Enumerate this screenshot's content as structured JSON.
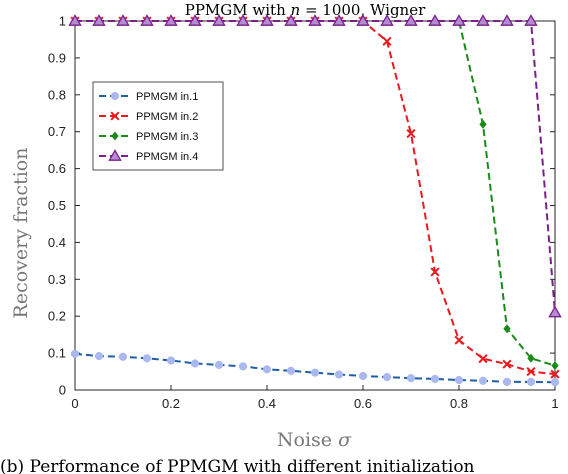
{
  "chart_data": {
    "type": "line",
    "title": "PPMGM with n = 1000, Wigner",
    "title_parts": {
      "prefix": "PPMGM with ",
      "var": "n",
      "suffix": " = 1000, Wigner"
    },
    "xlabel": "Noise σ",
    "xlabel_parts": {
      "text": "Noise ",
      "var": "σ"
    },
    "ylabel": "Recovery fraction",
    "xlim": [
      0,
      1
    ],
    "ylim": [
      0,
      1
    ],
    "xticks": [
      0,
      0.2,
      0.4,
      0.6,
      0.8,
      1
    ],
    "xtick_labels": [
      "0",
      "0.2",
      "0.4",
      "0.6",
      "0.8",
      "1"
    ],
    "yticks": [
      0,
      0.1,
      0.2,
      0.3,
      0.4,
      0.5,
      0.6,
      0.7,
      0.8,
      0.9,
      1
    ],
    "ytick_labels": [
      "0",
      "0.1",
      "0.2",
      "0.3",
      "0.4",
      "0.5",
      "0.6",
      "0.7",
      "0.8",
      "0.9",
      "1"
    ],
    "grid": false,
    "legend_position": "upper-left",
    "series": [
      {
        "name": "PPMGM in.1",
        "color": "#1f5fa8",
        "marker_color": "#a9b8ee",
        "marker": "circle",
        "x": [
          0,
          0.05,
          0.1,
          0.15,
          0.2,
          0.25,
          0.3,
          0.35,
          0.4,
          0.45,
          0.5,
          0.55,
          0.6,
          0.65,
          0.7,
          0.75,
          0.8,
          0.85,
          0.9,
          0.95,
          1
        ],
        "y": [
          0.098,
          0.092,
          0.09,
          0.086,
          0.08,
          0.072,
          0.068,
          0.064,
          0.056,
          0.052,
          0.047,
          0.042,
          0.038,
          0.035,
          0.032,
          0.03,
          0.027,
          0.025,
          0.022,
          0.022,
          0.021
        ]
      },
      {
        "name": "PPMGM in.2",
        "color": "#e8191f",
        "marker_color": "#e8191f",
        "marker": "x",
        "x": [
          0,
          0.05,
          0.1,
          0.15,
          0.2,
          0.25,
          0.3,
          0.35,
          0.4,
          0.45,
          0.5,
          0.55,
          0.6,
          0.65,
          0.7,
          0.75,
          0.8,
          0.85,
          0.9,
          0.95,
          1
        ],
        "y": [
          1,
          1,
          1,
          1,
          1,
          1,
          1,
          1,
          1,
          1,
          1,
          1,
          1,
          0.945,
          0.695,
          0.32,
          0.135,
          0.085,
          0.07,
          0.05,
          0.043
        ]
      },
      {
        "name": "PPMGM in.3",
        "color": "#1a8a1a",
        "marker_color": "#1a8a1a",
        "marker": "diamond",
        "x": [
          0,
          0.05,
          0.1,
          0.15,
          0.2,
          0.25,
          0.3,
          0.35,
          0.4,
          0.45,
          0.5,
          0.55,
          0.6,
          0.65,
          0.7,
          0.75,
          0.8,
          0.85,
          0.9,
          0.95,
          1
        ],
        "y": [
          1,
          1,
          1,
          1,
          1,
          1,
          1,
          1,
          1,
          1,
          1,
          1,
          1,
          1,
          1,
          1,
          1,
          0.72,
          0.166,
          0.086,
          0.066
        ]
      },
      {
        "name": "PPMGM in.4",
        "color": "#7b1f8a",
        "marker_color": "#7b1f8a",
        "marker": "triangle",
        "x": [
          0,
          0.05,
          0.1,
          0.15,
          0.2,
          0.25,
          0.3,
          0.35,
          0.4,
          0.45,
          0.5,
          0.55,
          0.6,
          0.65,
          0.7,
          0.75,
          0.8,
          0.85,
          0.9,
          0.95,
          1
        ],
        "y": [
          1,
          1,
          1,
          1,
          1,
          1,
          1,
          1,
          1,
          1,
          1,
          1,
          1,
          1,
          1,
          1,
          1,
          1,
          1,
          1,
          0.21
        ]
      }
    ]
  },
  "caption": {
    "text": "(b) Performance of PPMGM with different initialization"
  }
}
